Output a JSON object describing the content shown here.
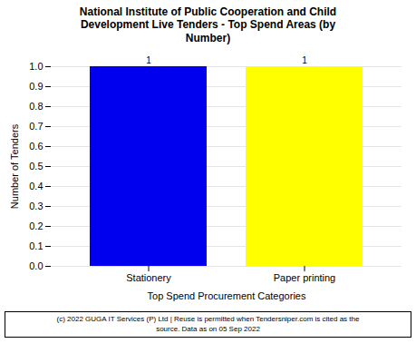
{
  "chart_data": {
    "type": "bar",
    "title": "National Institute of Public Cooperation and Child\nDevelopment Live Tenders - Top Spend Areas (by\nNumber)",
    "categories": [
      "Stationery",
      "Paper printing"
    ],
    "values": [
      1,
      1
    ],
    "colors": [
      "#0000EE",
      "#FFFF00"
    ],
    "xlabel": "Top Spend Procurement Categories",
    "ylabel": "Number of Tenders",
    "ylim": [
      0,
      1
    ],
    "yticks": [
      {
        "value": 0,
        "label": "0.0"
      },
      0.1,
      0.2,
      0.3,
      0.4,
      0.5,
      0.6,
      0.7,
      0.8,
      0.9,
      {
        "value": 1,
        "label": "1.0"
      }
    ],
    "grid": true,
    "data_labels": true,
    "footnote": "(c) 2022 GUGA IT Services (P) Ltd | Reuse is permitted when Tendersniper.com is cited as the\nsource. Data as on 05 Sep 2022"
  }
}
